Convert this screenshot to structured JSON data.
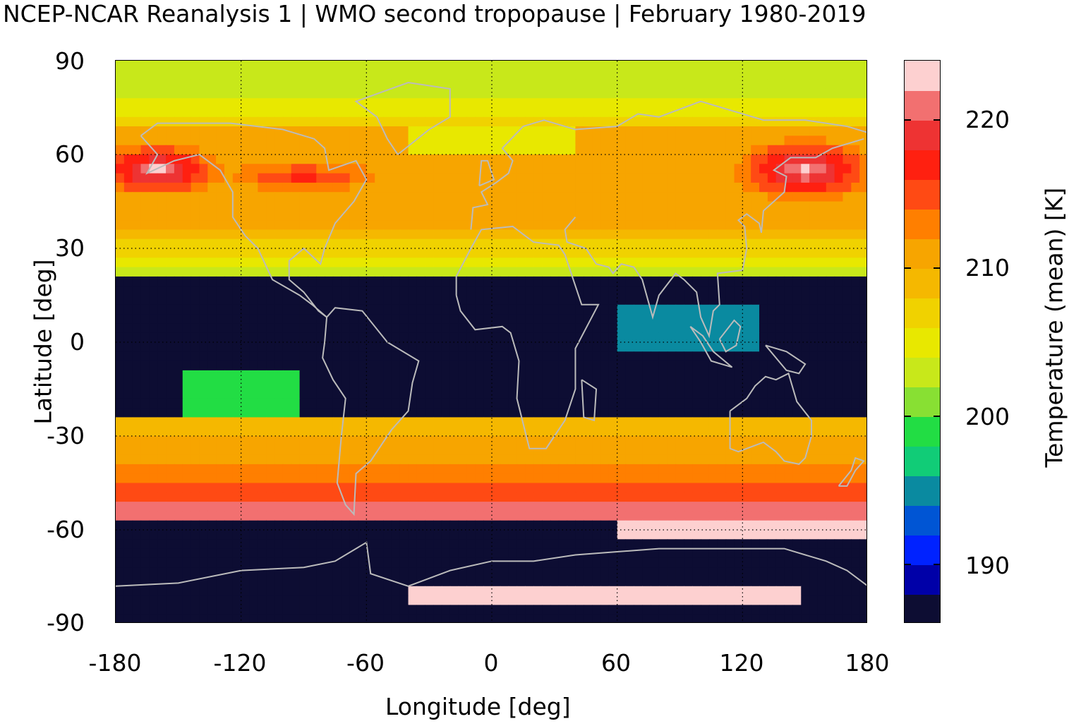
{
  "chart_data": {
    "type": "heatmap",
    "title": "NCEP-NCAR Reanalysis 1 | WMO second tropopause | February 1980-2019",
    "xlabel": "Longitude [deg]",
    "ylabel": "Latitude [deg]",
    "xlim": [
      -180,
      180
    ],
    "ylim": [
      -90,
      90
    ],
    "x_ticks": [
      "-180",
      "-120",
      "-60",
      "0",
      "60",
      "120",
      "180"
    ],
    "y_ticks": [
      "90",
      "60",
      "30",
      "0",
      "-30",
      "-60",
      "-90"
    ],
    "grid": true,
    "colorbar": {
      "label": "Temperature (mean) [K]",
      "range": [
        186,
        224
      ],
      "ticks": [
        "190",
        "200",
        "210",
        "220"
      ],
      "colors": [
        "#0d0d33",
        "#0000a8",
        "#0022ff",
        "#0055d4",
        "#0a8aa0",
        "#11cc77",
        "#22dd44",
        "#88e033",
        "#c8e81a",
        "#e8e800",
        "#f0d200",
        "#f5b800",
        "#f7a500",
        "#ff7f00",
        "#ff4a14",
        "#ff2010",
        "#ee3333",
        "#f27070",
        "#fdd0d0"
      ]
    },
    "bands": [
      {
        "lat_range": [
          75,
          90
        ],
        "description_value": 203
      },
      {
        "lat_range": [
          30,
          75
        ],
        "description_value": 212
      },
      {
        "lat_range": [
          -25,
          20
        ],
        "description_value": 187
      },
      {
        "lat_range": [
          -50,
          -25
        ],
        "description_value": 212
      },
      {
        "lat_range": [
          -58,
          -50
        ],
        "description_value": 219
      },
      {
        "lat_range": [
          -90,
          -58
        ],
        "description_value": 187
      }
    ]
  }
}
